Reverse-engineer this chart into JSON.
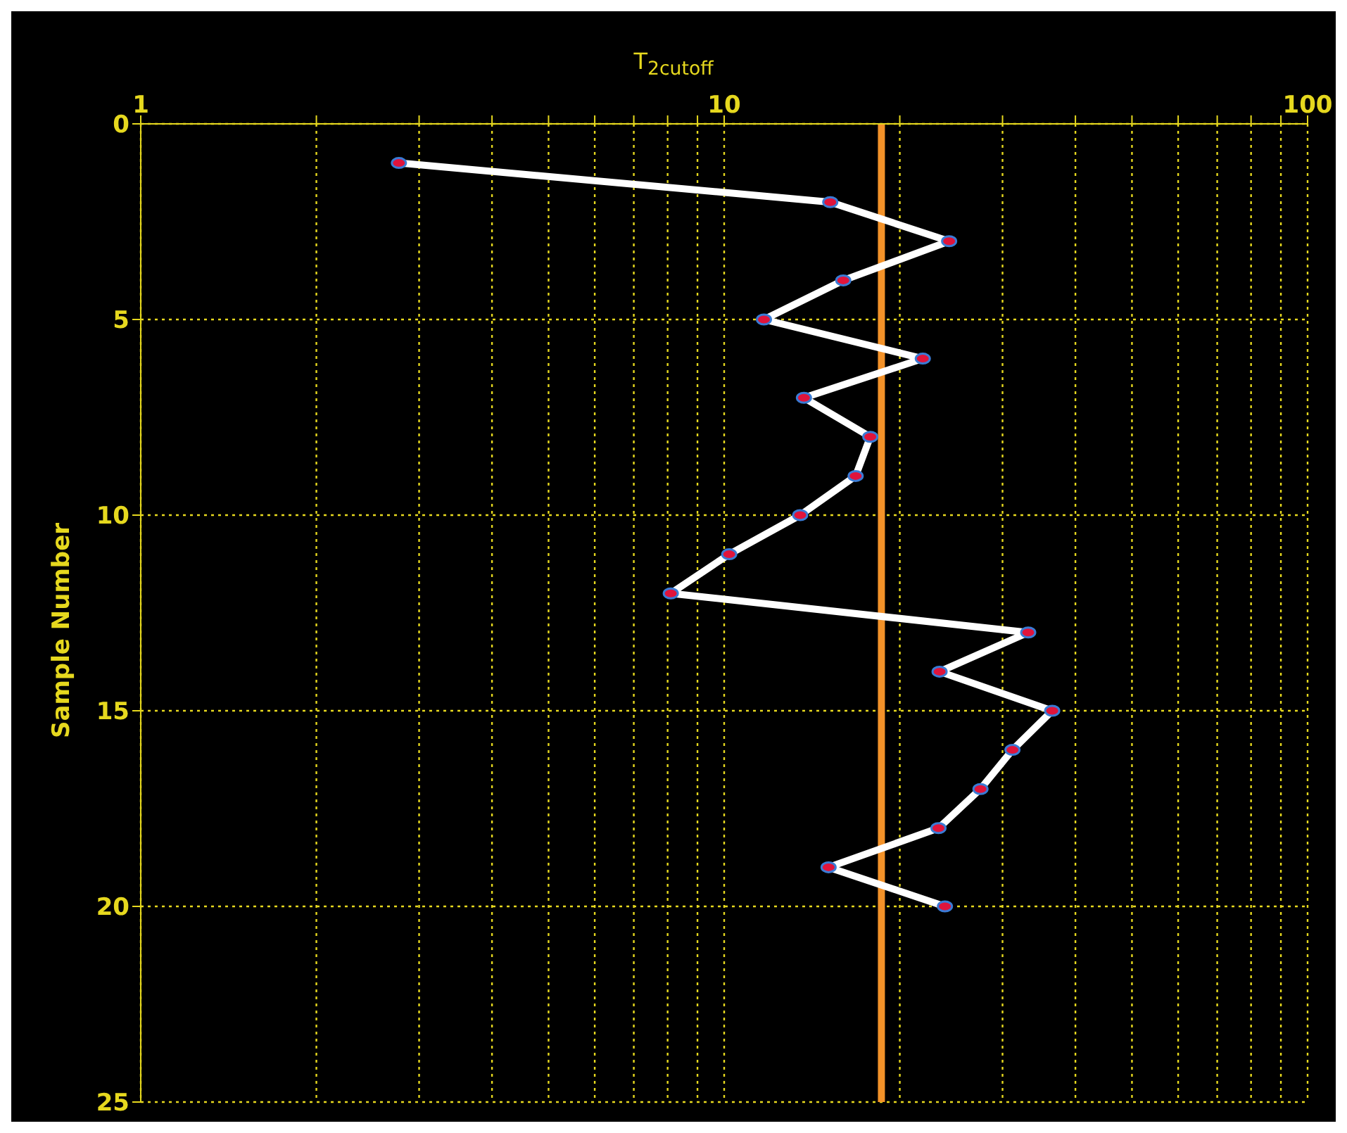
{
  "chart_data": {
    "type": "line",
    "orientation": "horizontal",
    "xlabel": "T$_{2cutoff}$",
    "ylabel": "Sample Number",
    "x": [
      1,
      2,
      3,
      4,
      5,
      6,
      7,
      8,
      9,
      10,
      11,
      12,
      13,
      14,
      15,
      16,
      17,
      18,
      19,
      20
    ],
    "series": [
      {
        "color": "#ffffff",
        "values": [
          2.77,
          15.2,
          24.3,
          16.0,
          11.7,
          21.9,
          13.7,
          17.8,
          16.8,
          13.5,
          10.2,
          8.1,
          33.2,
          23.4,
          36.5,
          31.2,
          27.5,
          23.3,
          15.1,
          23.9
        ]
      }
    ],
    "log": "x",
    "xlim": [
      1,
      100
    ],
    "xticks": [
      1,
      {
        "value": 2,
        "label": null
      },
      {
        "value": 3,
        "label": null
      },
      {
        "value": 4,
        "label": null
      },
      {
        "value": 5,
        "label": null
      },
      {
        "value": 6,
        "label": null
      },
      {
        "value": 7,
        "label": null
      },
      {
        "value": 8,
        "label": null
      },
      {
        "value": 9,
        "label": null
      },
      10,
      {
        "value": 20,
        "label": null
      },
      {
        "value": 30,
        "label": null
      },
      {
        "value": 40,
        "label": null
      },
      {
        "value": 50,
        "label": null
      },
      {
        "value": 60,
        "label": null
      },
      {
        "value": 70,
        "label": null
      },
      {
        "value": 80,
        "label": null
      },
      {
        "value": 90,
        "label": null
      },
      100
    ],
    "ylim": [
      25,
      0
    ],
    "yticks": [
      0,
      5,
      10,
      15,
      20,
      25
    ],
    "grid": true,
    "marker": "circle",
    "ref_lines": [
      {
        "axis": "x",
        "value": 18.6,
        "color": "#f39229"
      }
    ]
  }
}
